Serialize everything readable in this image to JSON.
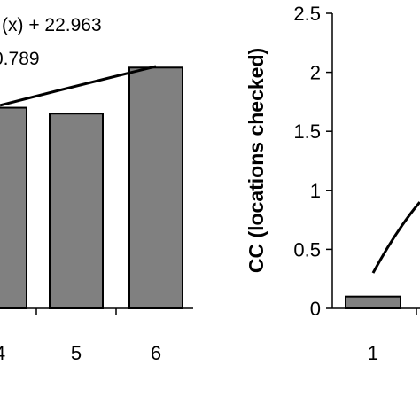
{
  "chart_data": [
    {
      "type": "bar",
      "categories": [
        "4",
        "5",
        "6"
      ],
      "values": [
        1.7,
        1.65,
        2.04
      ],
      "trendline": {
        "type": "logarithmic",
        "points": [
          [
            4,
            1.72
          ],
          [
            5,
            1.86
          ],
          [
            6,
            2.05
          ]
        ]
      },
      "equation_text": "(x) + 22.963",
      "r2_text": "0.789",
      "title": "",
      "xlabel": "",
      "ylabel": "",
      "ylim": [
        0,
        2.5
      ],
      "colors": {
        "bar": "#808080",
        "bar_edge": "#000000",
        "line": "#000000"
      }
    },
    {
      "type": "bar",
      "categories": [
        "1"
      ],
      "y_ticks": [
        "0",
        "0.5",
        "1",
        "1.5",
        "2",
        "2.5"
      ],
      "values": [
        0.1
      ],
      "trendline": {
        "type": "logarithmic",
        "points": [
          [
            1,
            0.3
          ],
          [
            1.33,
            0.62
          ],
          [
            1.66,
            0.9
          ]
        ]
      },
      "title": "",
      "xlabel": "",
      "ylabel": "CC (locations checked)",
      "ylim": [
        0,
        2.5
      ],
      "colors": {
        "bar": "#808080",
        "bar_edge": "#000000",
        "line": "#000000"
      }
    }
  ]
}
